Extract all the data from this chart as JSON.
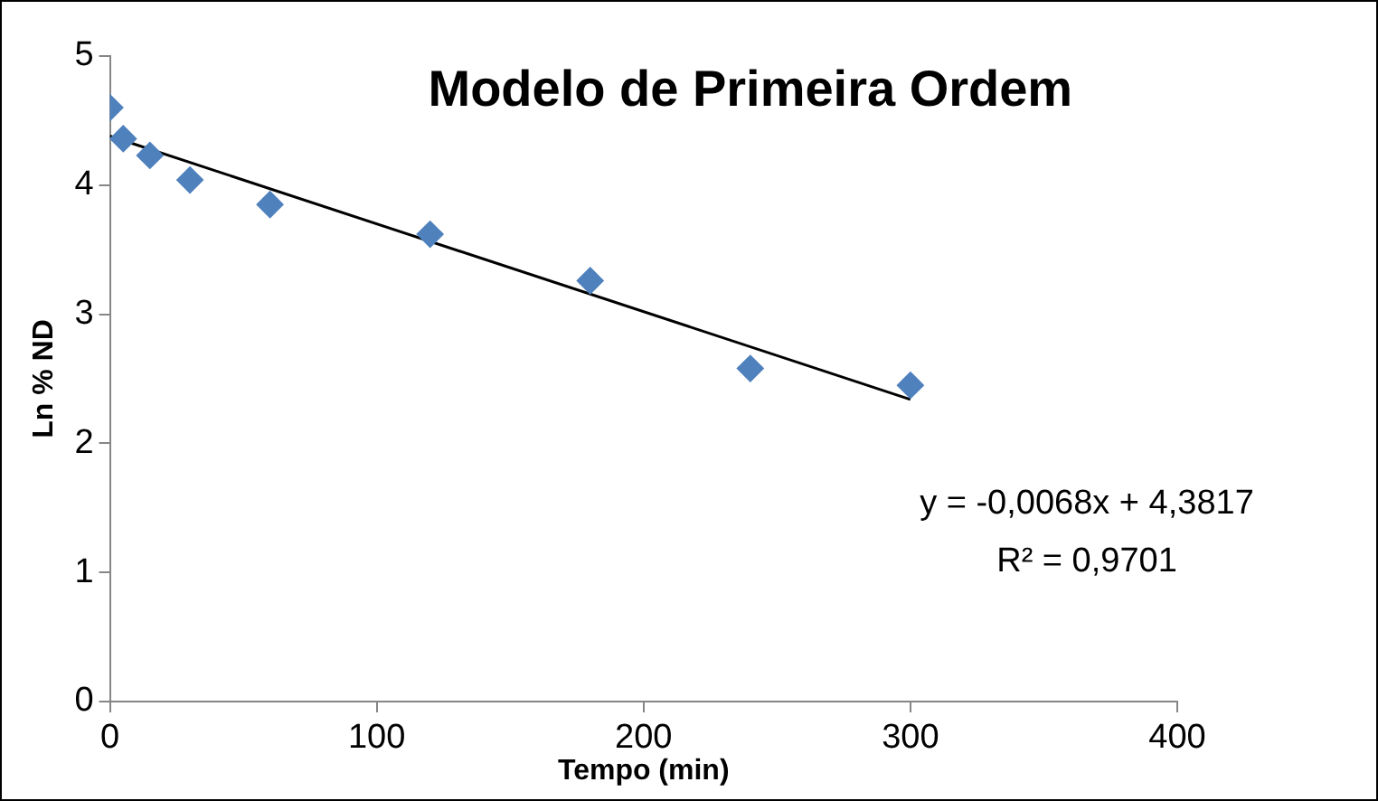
{
  "chart_data": {
    "type": "scatter",
    "title": "Modelo de Primeira Ordem",
    "xlabel": "Tempo (min)",
    "ylabel": "Ln % ND",
    "x": [
      0,
      5,
      15,
      30,
      60,
      120,
      180,
      240,
      300
    ],
    "series": [
      {
        "type": "scatter",
        "color": "#4f81bd",
        "marker": "diamond",
        "values": [
          4.6,
          4.36,
          4.23,
          4.04,
          3.85,
          3.62,
          3.26,
          2.58,
          2.45
        ]
      },
      {
        "type": "line",
        "color": "#000000",
        "x": [
          0,
          300
        ],
        "values": [
          4.38,
          2.34
        ],
        "marker": "none",
        "line_style": "solid"
      }
    ],
    "xlim": [
      0,
      400
    ],
    "xticks": [
      0,
      100,
      200,
      300,
      400
    ],
    "ylim": [
      0,
      5
    ],
    "yticks": [
      0,
      1,
      2,
      3,
      4,
      5
    ],
    "grid": false,
    "legend": false,
    "annotations": [
      "y = -0,0068x + 4,3817",
      "R² = 0,9701"
    ]
  }
}
